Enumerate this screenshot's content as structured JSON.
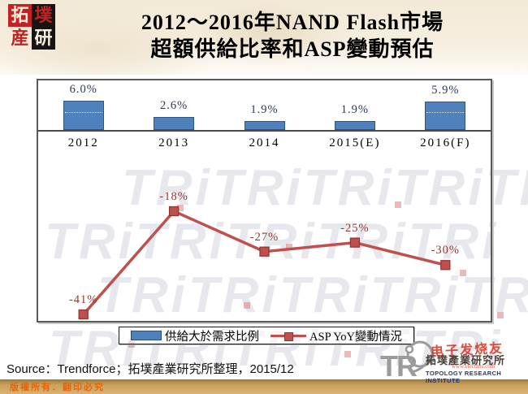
{
  "header": {
    "logo_chars": [
      "拓",
      "墣",
      "産",
      "研"
    ],
    "title_line1": "2012～2016年NAND Flash市場",
    "title_line2": "超額供給比率和ASP變動預估"
  },
  "chart_data": {
    "type": "bar+line",
    "title": "2012～2016年NAND Flash市場超額供給比率和ASP變動預估",
    "categories": [
      "2012",
      "2013",
      "2014",
      "2015(E)",
      "2016(F)"
    ],
    "series": [
      {
        "name": "供給大於需求比例",
        "type": "bar",
        "unit": "%",
        "values": [
          6.0,
          2.6,
          1.9,
          1.9,
          5.9
        ],
        "labels": [
          "6.0%",
          "2.6%",
          "1.9%",
          "1.9%",
          "5.9%"
        ],
        "color": "#4f81bd"
      },
      {
        "name": "ASP YoY變動情況",
        "type": "line",
        "unit": "%",
        "values": [
          -41,
          -18,
          -27,
          -25,
          -30
        ],
        "labels": [
          "-41%",
          "-18%",
          "-27%",
          "-25%",
          "-30%"
        ],
        "color": "#c0504d"
      }
    ],
    "legend_position": "bottom",
    "gridlines": false
  },
  "legend": {
    "bar_label": "供給大於需求比例",
    "line_label": "ASP YoY變動情況"
  },
  "footer": {
    "source": "Source：Trendforce；拓墣產業研究所整理，2015/12",
    "copyright": "版權所有．翻印必究"
  },
  "branding": {
    "tri_letters": "TR",
    "institute_cn": "拓墣產業研究所",
    "institute_en": "TOPOLOGY RESEARCH INSTITUTE",
    "overlay_watermark_cn": "电子发烧友",
    "overlay_watermark_url": "www.elecfans.com",
    "background_watermark_row": "TRiTRiTRiTRiTRi"
  },
  "colors": {
    "bar": "#4f81bd",
    "bar_border": "#2f5680",
    "bar_label": "#2b3a55",
    "line": "#c0504d",
    "line_label": "#943634",
    "marker_border": "#8e3835",
    "band": "#c99f58",
    "copyright_text": "#e8650a"
  }
}
